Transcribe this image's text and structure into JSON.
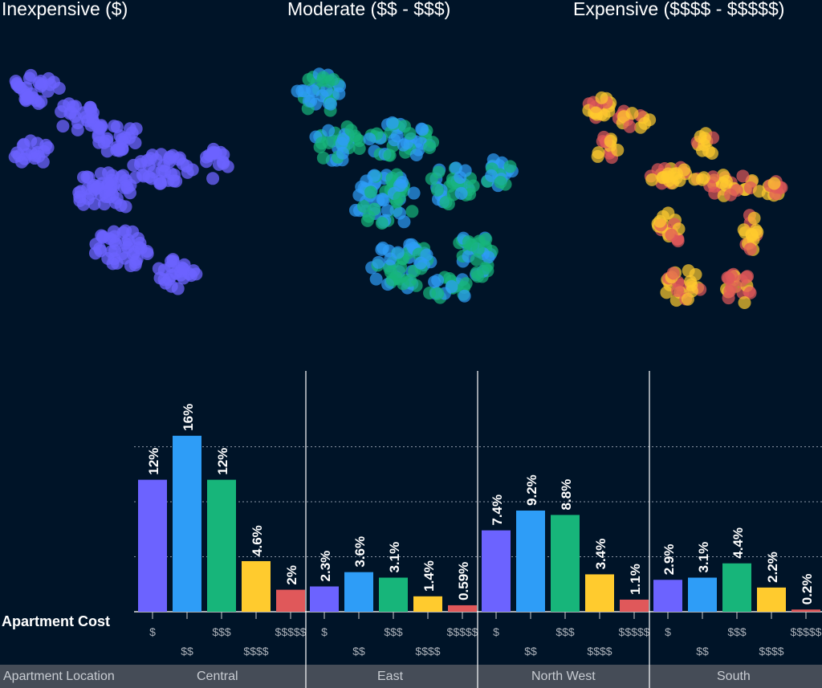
{
  "maps": [
    {
      "title": "Inexpensive ($)",
      "colors": [
        "#6c63ff"
      ]
    },
    {
      "title": "Moderate ($$ - $$$)",
      "colors": [
        "#2e9df7",
        "#17b57a"
      ]
    },
    {
      "title": "Expensive ($$$$ - $$$$$)",
      "colors": [
        "#ffcb2e",
        "#e0585a"
      ]
    }
  ],
  "chart_data": {
    "type": "bar",
    "xlabel": "Apartment Cost",
    "facet_label": "Apartment Location",
    "facets": [
      "Central",
      "East",
      "North West",
      "South"
    ],
    "categories": [
      "$",
      "$$",
      "$$$",
      "$$$$",
      "$$$$$"
    ],
    "colors": [
      "#6c63ff",
      "#2e9df7",
      "#17b57a",
      "#ffcb2e",
      "#e0585a"
    ],
    "unit": "%",
    "values": [
      [
        12,
        16,
        12,
        4.6,
        2
      ],
      [
        2.3,
        3.6,
        3.1,
        1.4,
        0.59
      ],
      [
        7.4,
        9.2,
        8.8,
        3.4,
        1.1
      ],
      [
        2.9,
        3.1,
        4.4,
        2.2,
        0.2
      ]
    ],
    "labels": [
      [
        "12%",
        "16%",
        "12%",
        "4.6%",
        "2%"
      ],
      [
        "2.3%",
        "3.6%",
        "3.1%",
        "1.4%",
        "0.59%"
      ],
      [
        "7.4%",
        "9.2%",
        "8.8%",
        "3.4%",
        "1.1%"
      ],
      [
        "2.9%",
        "3.1%",
        "4.4%",
        "2.2%",
        "0.2%"
      ]
    ],
    "ylim": [
      0,
      16
    ],
    "grid": true,
    "gridlines": [
      5,
      10,
      15
    ]
  }
}
